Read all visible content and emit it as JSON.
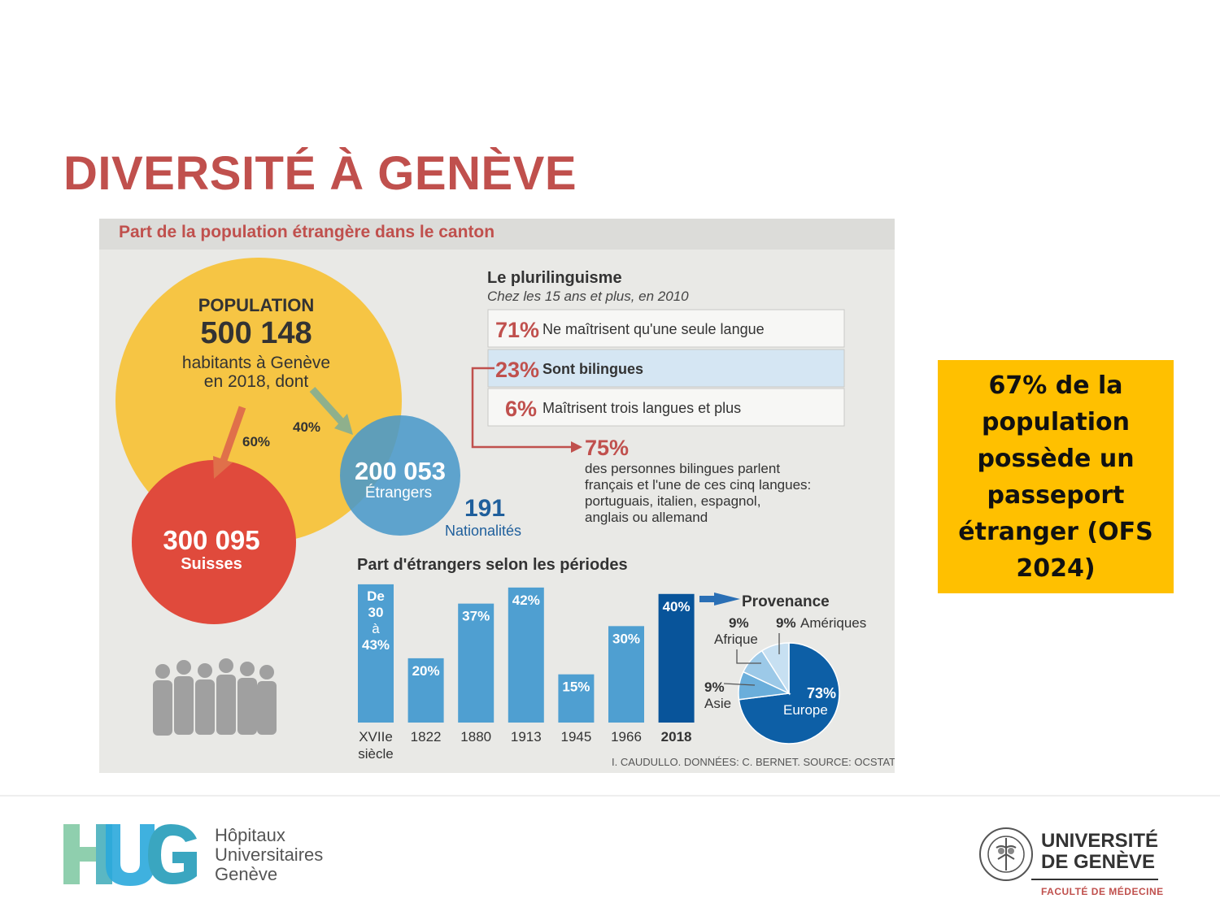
{
  "slide": {
    "title": "DIVERSITÉ À GENÈVE",
    "callout": "67% de la population possède un passeport étranger (OFS 2024)"
  },
  "infographic": {
    "title": "Part de la population étrangère dans le canton",
    "population": {
      "label": "POPULATION",
      "total": "500 148",
      "desc_line1": "habitants à Genève",
      "desc_line2": "en 2018, dont",
      "swiss_pct": "60%",
      "foreign_pct": "40%",
      "swiss_value": "300 095",
      "swiss_label": "Suisses",
      "foreign_value": "200 053",
      "foreign_label": "Étrangers",
      "nationalities_value": "191",
      "nationalities_label": "Nationalités"
    },
    "plurilinguisme": {
      "title": "Le plurilinguisme",
      "subtitle": "Chez les 15 ans et plus, en 2010",
      "rows": [
        {
          "pct": "71%",
          "label": "Ne maîtrisent qu'une seule langue"
        },
        {
          "pct": "23%",
          "label": "Sont bilingues"
        },
        {
          "pct": "6%",
          "label": "Maîtrisent trois langues et plus"
        }
      ],
      "bilingual_pct": "75%",
      "bilingual_lines": [
        "des personnes bilingues parlent",
        "français et l'une de ces cinq langues:",
        "portuguais, italien, espagnol,",
        "anglais ou allemand"
      ]
    },
    "credit": "I. CAUDULLO. DONNÉES: C. BERNET. SOURCE: OCSTAT",
    "colors": {
      "title_red": "#c0504d",
      "bar": "#4f9fd1",
      "bar_last": "#08549a",
      "circle_swiss": "#e04a3c",
      "circle_foreign": "#4a98c9",
      "circle_population": "#f6c544",
      "callout": "#ffc000"
    }
  },
  "chart_data": [
    {
      "type": "bar",
      "title": "Part d'étrangers selon les périodes",
      "categories": [
        "XVIIe siècle",
        "1822",
        "1880",
        "1913",
        "1945",
        "1966",
        "2018"
      ],
      "category_lines": [
        [
          "XVIIe",
          "siècle"
        ],
        [
          "1822"
        ],
        [
          "1880"
        ],
        [
          "1913"
        ],
        [
          "1945"
        ],
        [
          "1966"
        ],
        [
          "2018"
        ]
      ],
      "values": [
        43,
        20,
        37,
        42,
        15,
        30,
        40
      ],
      "value_labels": [
        "30–43%",
        "20%",
        "37%",
        "42%",
        "15%",
        "30%",
        "40%"
      ],
      "first_bar_label_lines": [
        "De",
        "30",
        "à",
        "43%"
      ],
      "first_bar_range": [
        30,
        43
      ],
      "ylim": [
        0,
        45
      ],
      "highlight_last": true
    },
    {
      "type": "pie",
      "title": "Provenance",
      "labels": [
        "Europe",
        "Amériques",
        "Afrique",
        "Asie"
      ],
      "values": [
        73,
        9,
        9,
        9
      ],
      "value_labels": [
        "73%",
        "9%",
        "9%",
        "9%"
      ],
      "colors": [
        "#0d5fa6",
        "#c7e0f2",
        "#9cc9e8",
        "#6aaedb"
      ]
    }
  ]
}
